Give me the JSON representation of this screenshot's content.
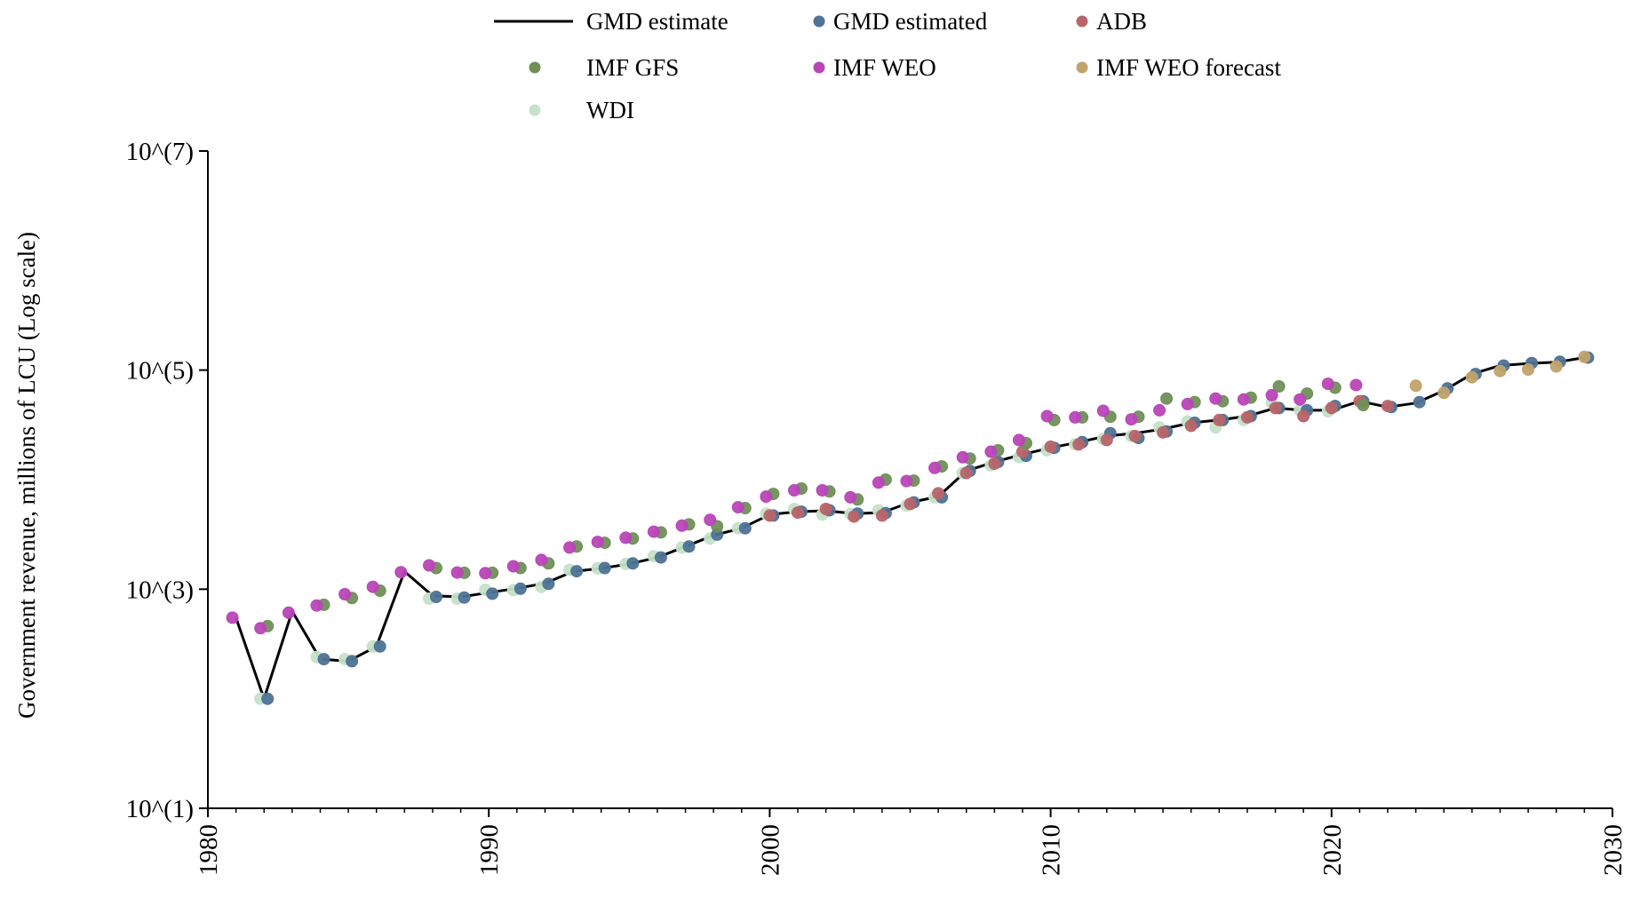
{
  "chart_data": {
    "type": "line",
    "title": "",
    "xlabel": "",
    "ylabel": "Government revenue, millions of LCU (Log scale)",
    "y_scale": "log",
    "xlim": [
      1980,
      2030
    ],
    "ylim": [
      10,
      10000000
    ],
    "x_ticks": [
      1980,
      1990,
      2000,
      2010,
      2020,
      2030
    ],
    "x_tick_labels": [
      "1980",
      "1990",
      "2000",
      "2010",
      "2020",
      "2030"
    ],
    "y_ticks": [
      10,
      1000,
      100000,
      10000000
    ],
    "y_tick_labels": [
      "10^(1)",
      "10^(3)",
      "10^(5)",
      "10^(7)"
    ],
    "grid": false,
    "legend_position": "top",
    "series": [
      {
        "name": "GMD estimate",
        "kind": "line",
        "color": "#000000",
        "points": [
          [
            1981,
            550
          ],
          [
            1982,
            100
          ],
          [
            1983,
            630
          ],
          [
            1984,
            230
          ],
          [
            1985,
            220
          ],
          [
            1986,
            300
          ],
          [
            1987,
            1450
          ],
          [
            1988,
            870
          ],
          [
            1989,
            850
          ],
          [
            1990,
            930
          ],
          [
            1991,
            1020
          ],
          [
            1992,
            1130
          ],
          [
            1993,
            1450
          ],
          [
            1994,
            1550
          ],
          [
            1995,
            1700
          ],
          [
            1996,
            1950
          ],
          [
            1997,
            2450
          ],
          [
            1998,
            3100
          ],
          [
            1999,
            3600
          ],
          [
            2000,
            4800
          ],
          [
            2001,
            5100
          ],
          [
            2002,
            5200
          ],
          [
            2003,
            4900
          ],
          [
            2004,
            5000
          ],
          [
            2005,
            6200
          ],
          [
            2006,
            7000
          ],
          [
            2007,
            12000
          ],
          [
            2008,
            14500
          ],
          [
            2009,
            17000
          ],
          [
            2010,
            19500
          ],
          [
            2011,
            22000
          ],
          [
            2012,
            25000
          ],
          [
            2013,
            26500
          ],
          [
            2014,
            29000
          ],
          [
            2015,
            33000
          ],
          [
            2016,
            35000
          ],
          [
            2017,
            38000
          ],
          [
            2018,
            45000
          ],
          [
            2019,
            43000
          ],
          [
            2020,
            43000
          ],
          [
            2021,
            52000
          ],
          [
            2022,
            46000
          ],
          [
            2023,
            50000
          ],
          [
            2024,
            65000
          ],
          [
            2025,
            92000
          ],
          [
            2026,
            110000
          ],
          [
            2027,
            115000
          ],
          [
            2028,
            118000
          ],
          [
            2029,
            130000
          ]
        ]
      },
      {
        "name": "GMD estimated",
        "kind": "scatter",
        "color": "#4e7396",
        "points": [
          [
            1982,
            100
          ],
          [
            1984,
            230
          ],
          [
            1985,
            220
          ],
          [
            1986,
            300
          ],
          [
            1988,
            850
          ],
          [
            1989,
            840
          ],
          [
            1990,
            910
          ],
          [
            1991,
            1010
          ],
          [
            1992,
            1120
          ],
          [
            1993,
            1460
          ],
          [
            1994,
            1560
          ],
          [
            1995,
            1720
          ],
          [
            1996,
            1950
          ],
          [
            1997,
            2450
          ],
          [
            1998,
            3150
          ],
          [
            1999,
            3600
          ],
          [
            2000,
            4700
          ],
          [
            2001,
            5100
          ],
          [
            2002,
            5250
          ],
          [
            2003,
            4900
          ],
          [
            2004,
            4950
          ],
          [
            2005,
            6200
          ],
          [
            2006,
            6900
          ],
          [
            2007,
            12000
          ],
          [
            2008,
            14500
          ],
          [
            2009,
            16500
          ],
          [
            2010,
            19500
          ],
          [
            2011,
            22000
          ],
          [
            2012,
            26500
          ],
          [
            2013,
            24000
          ],
          [
            2014,
            27500
          ],
          [
            2015,
            33000
          ],
          [
            2016,
            35000
          ],
          [
            2017,
            38000
          ],
          [
            2018,
            45000
          ],
          [
            2019,
            43000
          ],
          [
            2020,
            47000
          ],
          [
            2021,
            52000
          ],
          [
            2022,
            46000
          ],
          [
            2023,
            51000
          ],
          [
            2024,
            68000
          ],
          [
            2025,
            92000
          ],
          [
            2026,
            110000
          ],
          [
            2027,
            116000
          ],
          [
            2028,
            119000
          ],
          [
            2029,
            130000
          ]
        ]
      },
      {
        "name": "ADB",
        "kind": "scatter",
        "color": "#b86569",
        "points": [
          [
            2000,
            4700
          ],
          [
            2001,
            5000
          ],
          [
            2002,
            5400
          ],
          [
            2003,
            4600
          ],
          [
            2004,
            4700
          ],
          [
            2005,
            6000
          ],
          [
            2006,
            7500
          ],
          [
            2007,
            11500
          ],
          [
            2008,
            14000
          ],
          [
            2009,
            18000
          ],
          [
            2010,
            20000
          ],
          [
            2011,
            21000
          ],
          [
            2012,
            23000
          ],
          [
            2013,
            25000
          ],
          [
            2014,
            27000
          ],
          [
            2015,
            31000
          ],
          [
            2016,
            35000
          ],
          [
            2017,
            37000
          ],
          [
            2018,
            45000
          ],
          [
            2019,
            38000
          ],
          [
            2020,
            45000
          ],
          [
            2021,
            52000
          ],
          [
            2022,
            47000
          ]
        ]
      },
      {
        "name": "IMF GFS",
        "kind": "scatter",
        "color": "#708f57",
        "points": [
          [
            1982,
            460
          ],
          [
            1984,
            720
          ],
          [
            1985,
            830
          ],
          [
            1986,
            970
          ],
          [
            1988,
            1560
          ],
          [
            1989,
            1410
          ],
          [
            1990,
            1410
          ],
          [
            1991,
            1560
          ],
          [
            1992,
            1720
          ],
          [
            1993,
            2450
          ],
          [
            1994,
            2650
          ],
          [
            1995,
            2900
          ],
          [
            1996,
            3300
          ],
          [
            1997,
            3900
          ],
          [
            1998,
            3750
          ],
          [
            1999,
            5500
          ],
          [
            2000,
            7400
          ],
          [
            2001,
            8300
          ],
          [
            2002,
            7800
          ],
          [
            2003,
            6600
          ],
          [
            2004,
            10000
          ],
          [
            2005,
            9800
          ],
          [
            2006,
            13200
          ],
          [
            2007,
            15600
          ],
          [
            2008,
            18500
          ],
          [
            2009,
            21500
          ],
          [
            2010,
            35000
          ],
          [
            2011,
            37000
          ],
          [
            2012,
            37500
          ],
          [
            2013,
            37500
          ],
          [
            2014,
            55000
          ],
          [
            2015,
            51000
          ],
          [
            2016,
            52000
          ],
          [
            2017,
            56000
          ],
          [
            2018,
            71000
          ],
          [
            2019,
            61000
          ],
          [
            2020,
            69000
          ],
          [
            2021,
            48000
          ]
        ]
      },
      {
        "name": "IMF WEO",
        "kind": "scatter",
        "color": "#b945b8",
        "points": [
          [
            1981,
            550
          ],
          [
            1982,
            440
          ],
          [
            1983,
            610
          ],
          [
            1984,
            710
          ],
          [
            1985,
            900
          ],
          [
            1986,
            1050
          ],
          [
            1987,
            1430
          ],
          [
            1988,
            1650
          ],
          [
            1989,
            1420
          ],
          [
            1990,
            1400
          ],
          [
            1991,
            1620
          ],
          [
            1992,
            1850
          ],
          [
            1993,
            2400
          ],
          [
            1994,
            2700
          ],
          [
            1995,
            2950
          ],
          [
            1996,
            3350
          ],
          [
            1997,
            3800
          ],
          [
            1998,
            4300
          ],
          [
            1999,
            5600
          ],
          [
            2000,
            7000
          ],
          [
            2001,
            8000
          ],
          [
            2002,
            8000
          ],
          [
            2003,
            6900
          ],
          [
            2004,
            9400
          ],
          [
            2005,
            9700
          ],
          [
            2006,
            12800
          ],
          [
            2007,
            16000
          ],
          [
            2008,
            18000
          ],
          [
            2009,
            23000
          ],
          [
            2010,
            38000
          ],
          [
            2011,
            37000
          ],
          [
            2012,
            42500
          ],
          [
            2013,
            35500
          ],
          [
            2014,
            43000
          ],
          [
            2015,
            49000
          ],
          [
            2016,
            55000
          ],
          [
            2017,
            54000
          ],
          [
            2018,
            59000
          ],
          [
            2019,
            54000
          ],
          [
            2020,
            75000
          ],
          [
            2021,
            73000
          ]
        ]
      },
      {
        "name": "IMF WEO forecast",
        "kind": "scatter",
        "color": "#c0a36b",
        "points": [
          [
            2023,
            72000
          ],
          [
            2024,
            62000
          ],
          [
            2025,
            86000
          ],
          [
            2026,
            98000
          ],
          [
            2027,
            101000
          ],
          [
            2028,
            108000
          ],
          [
            2029,
            132000
          ]
        ]
      },
      {
        "name": "WDI",
        "kind": "scatter",
        "color": "#c5e1c9",
        "points": [
          [
            1982,
            100
          ],
          [
            1984,
            240
          ],
          [
            1985,
            230
          ],
          [
            1986,
            300
          ],
          [
            1988,
            820
          ],
          [
            1989,
            820
          ],
          [
            1990,
            990
          ],
          [
            1991,
            980
          ],
          [
            1992,
            1050
          ],
          [
            1993,
            1500
          ],
          [
            1994,
            1550
          ],
          [
            1995,
            1700
          ],
          [
            1996,
            2000
          ],
          [
            1997,
            2400
          ],
          [
            1998,
            2900
          ],
          [
            1999,
            3600
          ],
          [
            2000,
            4900
          ],
          [
            2001,
            5400
          ],
          [
            2002,
            4800
          ],
          [
            2003,
            4850
          ],
          [
            2004,
            5250
          ],
          [
            2005,
            5800
          ],
          [
            2006,
            6900
          ],
          [
            2007,
            11500
          ],
          [
            2008,
            13500
          ],
          [
            2009,
            16000
          ],
          [
            2010,
            18500
          ],
          [
            2011,
            21000
          ],
          [
            2012,
            23500
          ],
          [
            2013,
            25000
          ],
          [
            2014,
            30000
          ],
          [
            2015,
            34000
          ],
          [
            2016,
            30000
          ],
          [
            2017,
            35000
          ],
          [
            2018,
            50000
          ],
          [
            2019,
            43000
          ],
          [
            2020,
            42000
          ]
        ]
      }
    ]
  }
}
